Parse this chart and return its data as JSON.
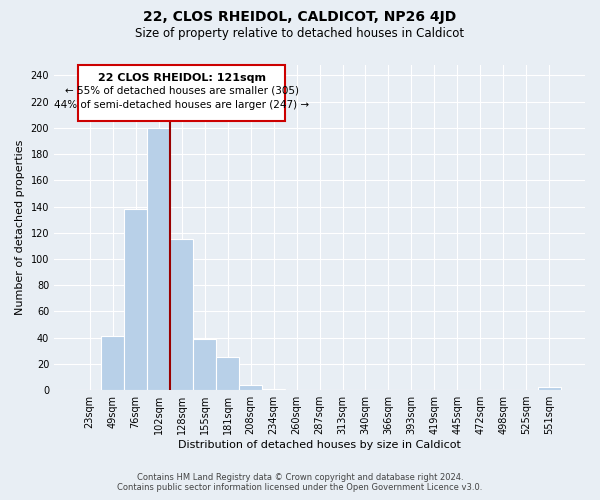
{
  "title": "22, CLOS RHEIDOL, CALDICOT, NP26 4JD",
  "subtitle": "Size of property relative to detached houses in Caldicot",
  "xlabel": "Distribution of detached houses by size in Caldicot",
  "ylabel": "Number of detached properties",
  "bar_labels": [
    "23sqm",
    "49sqm",
    "76sqm",
    "102sqm",
    "128sqm",
    "155sqm",
    "181sqm",
    "208sqm",
    "234sqm",
    "260sqm",
    "287sqm",
    "313sqm",
    "340sqm",
    "366sqm",
    "393sqm",
    "419sqm",
    "445sqm",
    "472sqm",
    "498sqm",
    "525sqm",
    "551sqm"
  ],
  "bar_values": [
    0,
    41,
    138,
    200,
    115,
    39,
    25,
    4,
    1,
    0,
    0,
    0,
    0,
    0,
    0,
    0,
    0,
    0,
    0,
    0,
    2
  ],
  "bar_color": "#b8d0e8",
  "vline_x": 3.5,
  "vline_color": "#990000",
  "ylim": [
    0,
    248
  ],
  "yticks": [
    0,
    20,
    40,
    60,
    80,
    100,
    120,
    140,
    160,
    180,
    200,
    220,
    240
  ],
  "annotation_title": "22 CLOS RHEIDOL: 121sqm",
  "annotation_line1": "← 55% of detached houses are smaller (305)",
  "annotation_line2": "44% of semi-detached houses are larger (247) →",
  "annotation_box_color": "#cc0000",
  "footer_line1": "Contains HM Land Registry data © Crown copyright and database right 2024.",
  "footer_line2": "Contains public sector information licensed under the Open Government Licence v3.0.",
  "background_color": "#e8eef4",
  "plot_background": "#e8eef4",
  "grid_color": "#ffffff",
  "title_fontsize": 10,
  "subtitle_fontsize": 8.5,
  "tick_fontsize": 7,
  "ylabel_fontsize": 8,
  "xlabel_fontsize": 8
}
